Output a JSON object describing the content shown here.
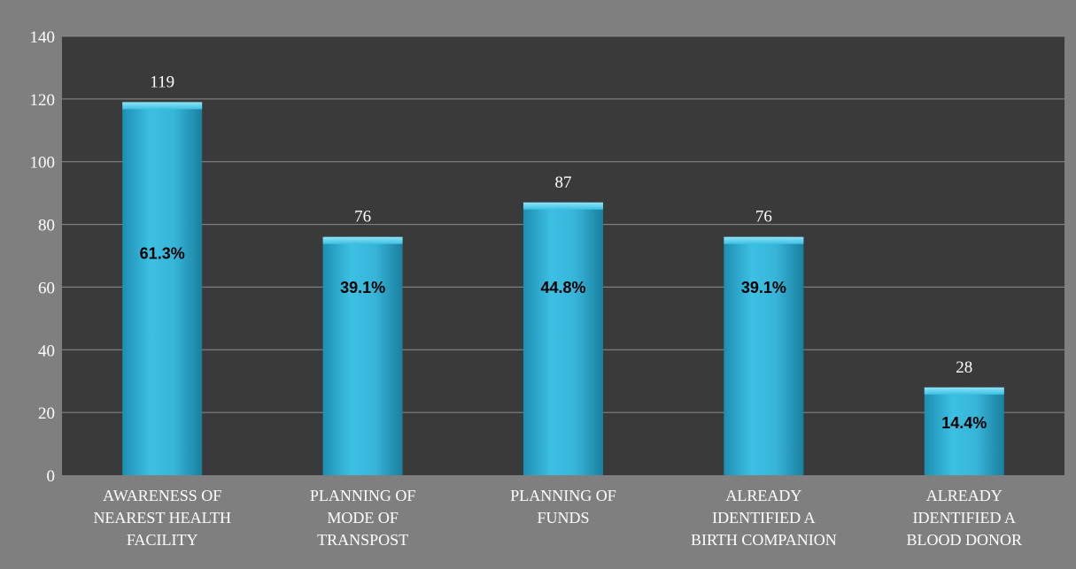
{
  "chart_data": {
    "type": "bar",
    "categories": [
      [
        "AWARENESS OF",
        "NEAREST HEALTH",
        "FACILITY"
      ],
      [
        "PLANNING OF",
        "MODE OF",
        "TRANSPOST"
      ],
      [
        "PLANNING OF",
        "FUNDS"
      ],
      [
        "ALREADY",
        "IDENTIFIED A",
        "BIRTH COMPANION"
      ],
      [
        "ALREADY",
        "IDENTIFIED A",
        "BLOOD DONOR"
      ]
    ],
    "values": [
      119,
      76,
      87,
      76,
      28
    ],
    "percent_labels": [
      "61.3%",
      "39.1%",
      "44.8%",
      "39.1%",
      "14.4%"
    ],
    "yticks": [
      0,
      20,
      40,
      60,
      80,
      100,
      120,
      140
    ],
    "ylim": [
      0,
      140
    ],
    "grid": true,
    "colors": {
      "page_background": "#7f7f7f",
      "plot_background": "#3a3a3a",
      "gridline": "#8c8c8c",
      "bar": "#35b2d6",
      "bar_dark": "#1c86a6",
      "value_label": "#ffffff",
      "percent_label": "#000000",
      "tick_label": "#ffffff"
    }
  }
}
